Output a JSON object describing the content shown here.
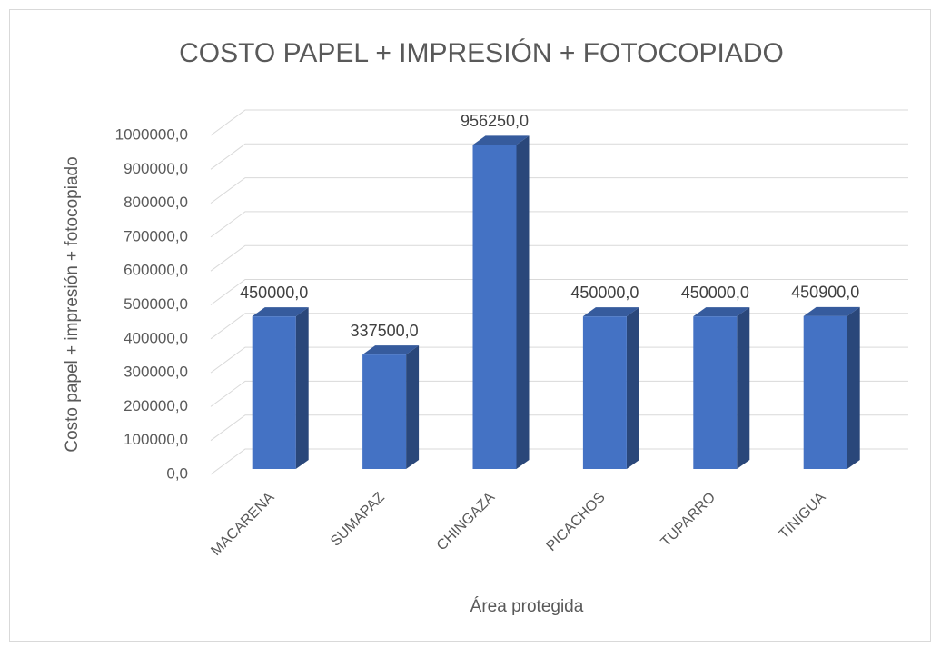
{
  "chart_data": {
    "type": "bar3d",
    "title": "COSTO PAPEL + IMPRESIÓN + FOTOCOPIADO",
    "x_label": "Área protegida",
    "y_label": "Costo papel + impresión + fotocopiado",
    "categories": [
      "MACARENA",
      "SUMAPAZ",
      "CHINGAZA",
      "PICACHOS",
      "TUPARRO",
      "TINIGUA"
    ],
    "values": [
      450000,
      337500,
      956250,
      450000,
      450000,
      450900
    ],
    "value_labels": [
      "450000,0",
      "337500,0",
      "956250,0",
      "450000,0",
      "450000,0",
      "450900,0"
    ],
    "color": "#4472c4",
    "ylim": [
      0,
      1000000
    ],
    "yticks": [
      {
        "value": 0,
        "label": "0,0"
      },
      {
        "value": 100000,
        "label": "100000,0"
      },
      {
        "value": 200000,
        "label": "200000,0"
      },
      {
        "value": 300000,
        "label": "300000,0"
      },
      {
        "value": 400000,
        "label": "400000,0"
      },
      {
        "value": 500000,
        "label": "500000,0"
      },
      {
        "value": 600000,
        "label": "600000,0"
      },
      {
        "value": 700000,
        "label": "700000,0"
      },
      {
        "value": 800000,
        "label": "800000,0"
      },
      {
        "value": 900000,
        "label": "900000,0"
      },
      {
        "value": 1000000,
        "label": "1000000,0"
      }
    ],
    "grid": true
  }
}
